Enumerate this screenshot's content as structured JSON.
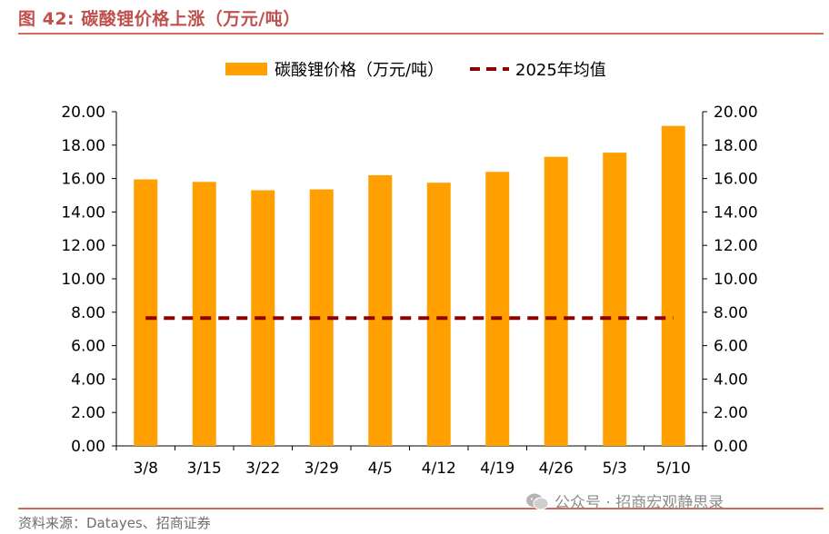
{
  "figure": {
    "title": "图 42:  碳酸锂价格上涨（万元/吨）",
    "source": "资料来源：Datayes、招商证券",
    "watermark": "公众号 · 招商宏观静思录",
    "watermark_icon": "wechat-icon"
  },
  "chart_data": {
    "type": "bar",
    "categories": [
      "3/8",
      "3/15",
      "3/22",
      "3/29",
      "4/5",
      "4/12",
      "4/19",
      "4/26",
      "5/3",
      "5/10"
    ],
    "series": [
      {
        "name": "碳酸锂价格（万元/吨）",
        "kind": "bar",
        "color": "#ffa000",
        "values": [
          15.95,
          15.8,
          15.3,
          15.35,
          16.2,
          15.75,
          16.4,
          17.3,
          17.55,
          19.15
        ]
      },
      {
        "name": "2025年均值",
        "kind": "dashed-line",
        "color": "#8b0000",
        "values": [
          7.65,
          7.65,
          7.65,
          7.65,
          7.65,
          7.65,
          7.65,
          7.65,
          7.65,
          7.65
        ]
      }
    ],
    "ylim": [
      0,
      20
    ],
    "yticks": [
      "0.00",
      "2.00",
      "4.00",
      "6.00",
      "8.00",
      "10.00",
      "12.00",
      "14.00",
      "16.00",
      "18.00",
      "20.00"
    ],
    "y2ticks": [
      "0.00",
      "2.00",
      "4.00",
      "6.00",
      "8.00",
      "10.00",
      "12.00",
      "14.00",
      "16.00",
      "18.00",
      "20.00"
    ],
    "grid": false,
    "legend_position": "top-center"
  }
}
